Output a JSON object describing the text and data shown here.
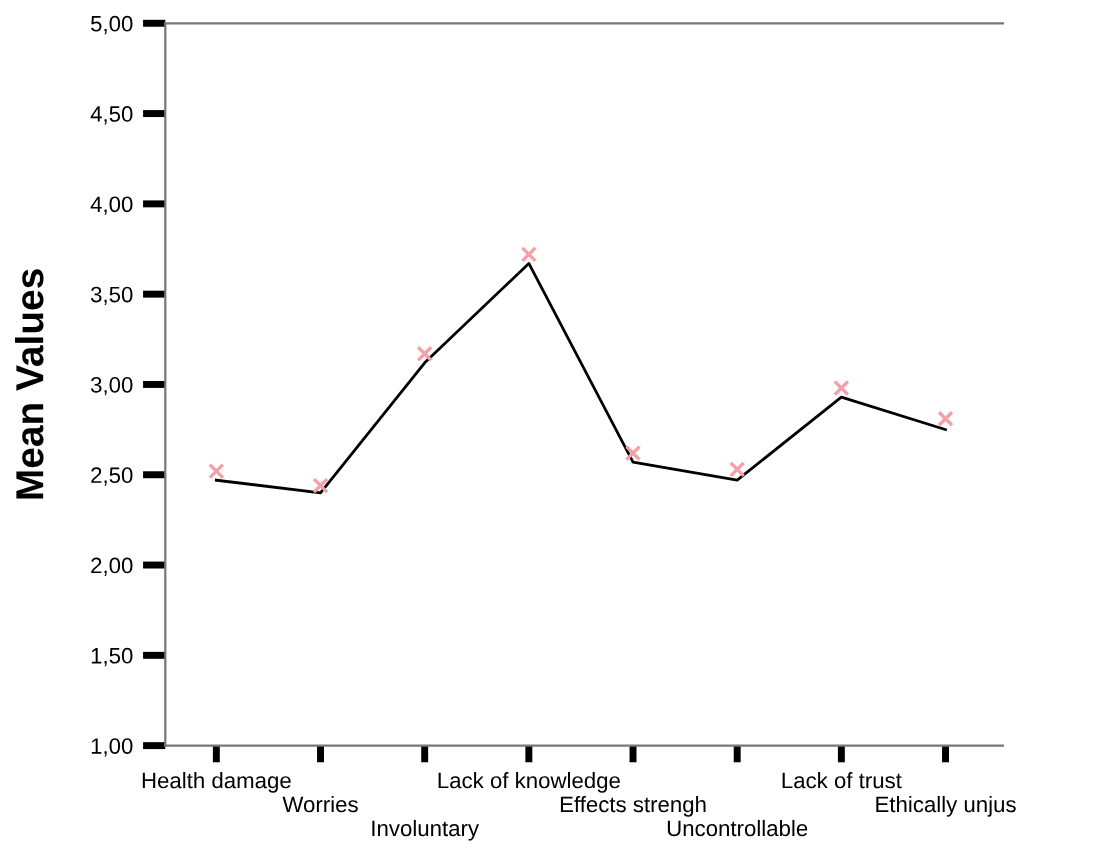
{
  "chart_data": {
    "type": "line",
    "ylabel": "Mean Values",
    "categories": [
      "Health damage",
      "Worries",
      "Involuntary",
      "Lack of knowledge",
      "Effects strengh",
      "Uncontrollable",
      "Lack of trust",
      "Ethically unjus"
    ],
    "series": [
      {
        "color": "#000000",
        "marker": "none",
        "values": [
          2.47,
          2.4,
          3.12,
          3.67,
          2.57,
          2.47,
          2.93,
          2.75
        ]
      },
      {
        "type": "scatter",
        "color": "#f4a0a8",
        "marker": "cross",
        "values": [
          2.52,
          2.44,
          3.17,
          3.72,
          2.62,
          2.53,
          2.98,
          2.81
        ]
      }
    ],
    "ylim": [
      1,
      5
    ],
    "yticks": [
      {
        "value": 1,
        "label": "1,00"
      },
      {
        "value": 1.5,
        "label": "1,50"
      },
      {
        "value": 2,
        "label": "2,00"
      },
      {
        "value": 2.5,
        "label": "2,50"
      },
      {
        "value": 3,
        "label": "3,00"
      },
      {
        "value": 3.5,
        "label": "3,50"
      },
      {
        "value": 4,
        "label": "4,00"
      },
      {
        "value": 4.5,
        "label": "4,50"
      },
      {
        "value": 5,
        "label": "5,00"
      }
    ],
    "grid": false,
    "legend": false
  }
}
